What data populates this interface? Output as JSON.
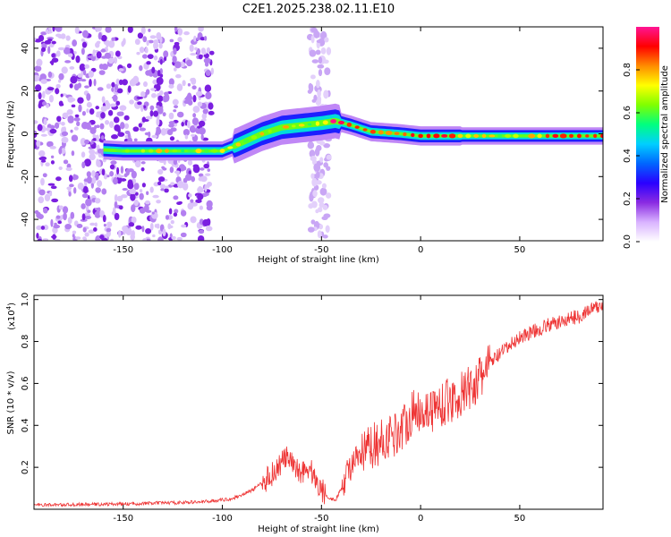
{
  "title": "C2E1.2025.238.02.11.E10",
  "chart_data": [
    {
      "type": "heatmap",
      "name": "spectrogram",
      "xlabel": "Height of straight line (km)",
      "ylabel": "Frequency (Hz)",
      "xlim": [
        -195,
        92
      ],
      "ylim": [
        -50,
        50
      ],
      "x_ticks": [
        -150,
        -100,
        -50,
        0,
        50
      ],
      "y_ticks": [
        -40,
        -20,
        0,
        20,
        40
      ],
      "ridge": {
        "description": "dominant frequency track (height km, frequency Hz)",
        "points": [
          [
            -160,
            -7.5
          ],
          [
            -150,
            -8
          ],
          [
            -100,
            -8
          ],
          [
            -92,
            -5
          ],
          [
            -80,
            0
          ],
          [
            -70,
            3
          ],
          [
            -60,
            4
          ],
          [
            -50,
            5
          ],
          [
            -43,
            6
          ],
          [
            -35,
            4
          ],
          [
            -25,
            1
          ],
          [
            -10,
            0
          ],
          [
            0,
            -1
          ],
          [
            20,
            -1
          ],
          [
            50,
            -1
          ],
          [
            90,
            -1
          ]
        ]
      },
      "colorbar": {
        "label": "Normalized spectral amplitude",
        "range": [
          0,
          1
        ],
        "ticks": [
          "0.0",
          "0.2",
          "0.4",
          "0.6",
          "0.8"
        ],
        "tick_values": [
          0,
          0.2,
          0.4,
          0.6,
          0.8
        ],
        "colors": [
          "#ffffff",
          "#d9b3ff",
          "#8a2be2",
          "#2a00ff",
          "#0066ff",
          "#00cfff",
          "#00ff7f",
          "#7fff00",
          "#ffff00",
          "#ff8c00",
          "#ff0000",
          "#ff1493"
        ]
      }
    },
    {
      "type": "line",
      "name": "snr",
      "xlabel": "Height of straight line (km)",
      "ylabel": "SNR (10 * v/v)",
      "scale_label": "(x10",
      "scale_exp": "4",
      "scale_close": ")",
      "xlim": [
        -195,
        92
      ],
      "ylim": [
        0,
        1.02
      ],
      "x_ticks": [
        -150,
        -100,
        -50,
        0,
        50
      ],
      "y_ticks": [
        0.2,
        0.4,
        0.6,
        0.8,
        1.0
      ],
      "y_tick_labels": [
        "0.2",
        "0.4",
        "0.6",
        "0.8",
        "1.0"
      ],
      "color": "#ee3333",
      "trend": [
        [
          -195,
          0.02
        ],
        [
          -150,
          0.025
        ],
        [
          -110,
          0.035
        ],
        [
          -95,
          0.05
        ],
        [
          -85,
          0.09
        ],
        [
          -78,
          0.14
        ],
        [
          -72,
          0.2
        ],
        [
          -68,
          0.25
        ],
        [
          -64,
          0.2
        ],
        [
          -60,
          0.18
        ],
        [
          -56,
          0.2
        ],
        [
          -52,
          0.12
        ],
        [
          -47,
          0.06
        ],
        [
          -43,
          0.04
        ],
        [
          -40,
          0.1
        ],
        [
          -36,
          0.2
        ],
        [
          -30,
          0.25
        ],
        [
          -25,
          0.3
        ],
        [
          -20,
          0.32
        ],
        [
          -15,
          0.35
        ],
        [
          -10,
          0.38
        ],
        [
          -5,
          0.45
        ],
        [
          0,
          0.48
        ],
        [
          5,
          0.47
        ],
        [
          10,
          0.5
        ],
        [
          15,
          0.52
        ],
        [
          20,
          0.54
        ],
        [
          25,
          0.58
        ],
        [
          30,
          0.62
        ],
        [
          35,
          0.7
        ],
        [
          40,
          0.74
        ],
        [
          45,
          0.78
        ],
        [
          50,
          0.82
        ],
        [
          55,
          0.84
        ],
        [
          60,
          0.86
        ],
        [
          65,
          0.88
        ],
        [
          70,
          0.89
        ],
        [
          75,
          0.91
        ],
        [
          80,
          0.92
        ],
        [
          85,
          0.95
        ],
        [
          92,
          0.97
        ]
      ]
    }
  ]
}
